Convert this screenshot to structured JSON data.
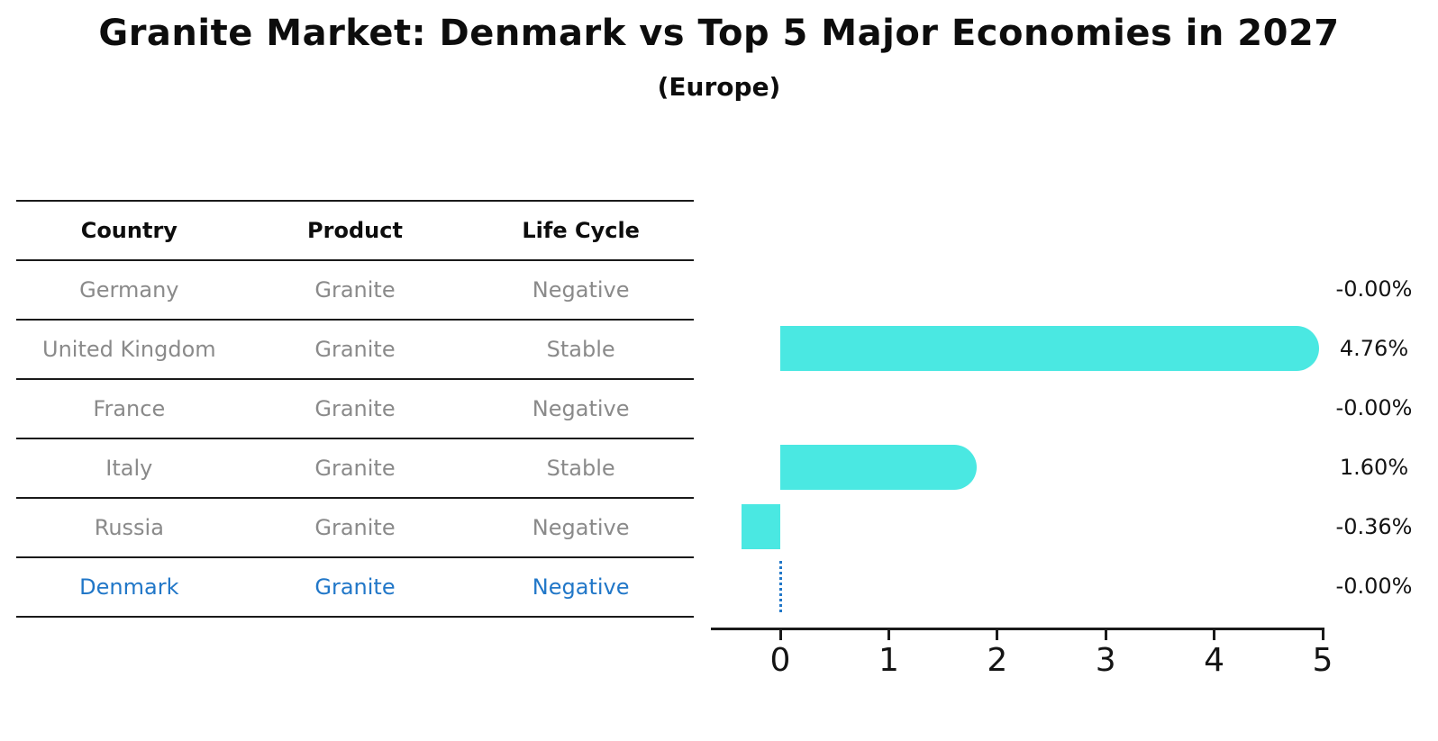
{
  "header": {
    "title": "Granite Market: Denmark vs Top 5 Major Economies in 2027",
    "subtitle": "(Europe)"
  },
  "table": {
    "headers": [
      "Country",
      "Product",
      "Life Cycle"
    ],
    "rows": [
      {
        "country": "Germany",
        "product": "Granite",
        "life_cycle": "Negative",
        "highlight": false
      },
      {
        "country": "United Kingdom",
        "product": "Granite",
        "life_cycle": "Stable",
        "highlight": false
      },
      {
        "country": "France",
        "product": "Granite",
        "life_cycle": "Negative",
        "highlight": false
      },
      {
        "country": "Italy",
        "product": "Granite",
        "life_cycle": "Stable",
        "highlight": false
      },
      {
        "country": "Russia",
        "product": "Granite",
        "life_cycle": "Negative",
        "highlight": false
      },
      {
        "country": "Denmark",
        "product": "Granite",
        "life_cycle": "Negative",
        "highlight": true
      }
    ]
  },
  "chart_data": {
    "type": "bar",
    "orientation": "horizontal",
    "title": "Granite Market: Denmark vs Top 5 Major Economies in 2027",
    "subtitle": "(Europe)",
    "categories": [
      "Germany",
      "United Kingdom",
      "France",
      "Italy",
      "Russia",
      "Denmark"
    ],
    "values": [
      -0.0,
      4.76,
      -0.0,
      1.6,
      -0.36,
      -0.0
    ],
    "value_labels": [
      "-0.00%",
      "4.76%",
      "-0.00%",
      "1.60%",
      "-0.36%",
      "-0.00%"
    ],
    "x_ticks": [
      "0",
      "1",
      "2",
      "3",
      "4",
      "5"
    ],
    "xlim": [
      -0.65,
      5.0
    ],
    "grid": false,
    "legend": false,
    "bar_color": "#4AE8E2",
    "highlight_color": "#2177C8",
    "highlight_category": "Denmark",
    "highlight_marker": "dotted vertical line at x=0 on Denmark row"
  },
  "colors": {
    "background": "#FFFFFF",
    "bar": "#4AE8E2",
    "highlight": "#2177C8",
    "table_text": "#8A8A8A",
    "heading_text": "#0D0D0D",
    "axis": "#1A1A1A"
  }
}
